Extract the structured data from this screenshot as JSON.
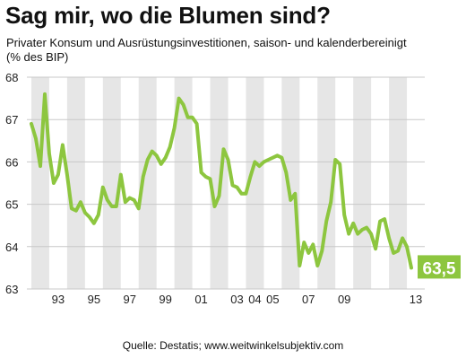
{
  "title": "Sag mir, wo die Blumen sind?",
  "subtitle_line1": "Privater Konsum und Ausrüstungsinvestitionen, saison- und kalenderbereinigt",
  "subtitle_line2": "(% des BIP)",
  "source": "Quelle: Destatis; www.weitwinkelsubjektiv.com",
  "colors": {
    "line": "#8dc63f",
    "band": "#e6e6e6",
    "label_bg": "#8dc63f",
    "label_text": "#ffffff"
  },
  "chart_data": {
    "type": "line",
    "ylim": [
      63,
      68
    ],
    "y_ticks": [
      "63",
      "64",
      "65",
      "66",
      "67",
      "68"
    ],
    "xlim": [
      1991.75,
      2014.0
    ],
    "x_ticks": [
      {
        "label": "93",
        "year": 1993.5
      },
      {
        "label": "95",
        "year": 1995.5
      },
      {
        "label": "97",
        "year": 1997.5
      },
      {
        "label": "99",
        "year": 1999.5
      },
      {
        "label": "01",
        "year": 2001.5
      },
      {
        "label": "03",
        "year": 2003.5
      },
      {
        "label": "04",
        "year": 2004.5
      },
      {
        "label": "05",
        "year": 2005.5
      },
      {
        "label": "07",
        "year": 2007.5
      },
      {
        "label": "09",
        "year": 2009.5
      },
      {
        "label": "13",
        "year": 2013.5
      }
    ],
    "shaded_years": [
      1992,
      1994,
      1996,
      1998,
      2000,
      2002,
      2004,
      2006,
      2008,
      2010,
      2012
    ],
    "end_label": "63,5",
    "grid": true,
    "values": [
      [
        1992.0,
        66.9
      ],
      [
        1992.25,
        66.55
      ],
      [
        1992.5,
        65.9
      ],
      [
        1992.75,
        67.6
      ],
      [
        1993.0,
        66.2
      ],
      [
        1993.25,
        65.5
      ],
      [
        1993.5,
        65.7
      ],
      [
        1993.75,
        66.4
      ],
      [
        1994.0,
        65.7
      ],
      [
        1994.25,
        64.9
      ],
      [
        1994.5,
        64.85
      ],
      [
        1994.75,
        65.05
      ],
      [
        1995.0,
        64.8
      ],
      [
        1995.25,
        64.7
      ],
      [
        1995.5,
        64.55
      ],
      [
        1995.75,
        64.75
      ],
      [
        1996.0,
        65.4
      ],
      [
        1996.25,
        65.1
      ],
      [
        1996.5,
        64.95
      ],
      [
        1996.75,
        64.95
      ],
      [
        1997.0,
        65.7
      ],
      [
        1997.25,
        65.05
      ],
      [
        1997.5,
        65.15
      ],
      [
        1997.75,
        65.1
      ],
      [
        1998.0,
        64.9
      ],
      [
        1998.25,
        65.65
      ],
      [
        1998.5,
        66.05
      ],
      [
        1998.75,
        66.25
      ],
      [
        1999.0,
        66.15
      ],
      [
        1999.25,
        65.95
      ],
      [
        1999.5,
        66.1
      ],
      [
        1999.75,
        66.35
      ],
      [
        2000.0,
        66.8
      ],
      [
        2000.25,
        67.5
      ],
      [
        2000.5,
        67.35
      ],
      [
        2000.75,
        67.05
      ],
      [
        2001.0,
        67.05
      ],
      [
        2001.25,
        66.9
      ],
      [
        2001.5,
        65.75
      ],
      [
        2001.75,
        65.65
      ],
      [
        2002.0,
        65.6
      ],
      [
        2002.25,
        64.95
      ],
      [
        2002.5,
        65.2
      ],
      [
        2002.75,
        66.3
      ],
      [
        2003.0,
        66.05
      ],
      [
        2003.25,
        65.45
      ],
      [
        2003.5,
        65.4
      ],
      [
        2003.75,
        65.25
      ],
      [
        2004.0,
        65.25
      ],
      [
        2004.25,
        65.65
      ],
      [
        2004.5,
        66.0
      ],
      [
        2004.75,
        65.9
      ],
      [
        2005.0,
        66.0
      ],
      [
        2005.25,
        66.05
      ],
      [
        2005.5,
        66.1
      ],
      [
        2005.75,
        66.15
      ],
      [
        2006.0,
        66.1
      ],
      [
        2006.25,
        65.75
      ],
      [
        2006.5,
        65.1
      ],
      [
        2006.75,
        65.25
      ],
      [
        2007.0,
        63.55
      ],
      [
        2007.25,
        64.1
      ],
      [
        2007.5,
        63.85
      ],
      [
        2007.75,
        64.05
      ],
      [
        2008.0,
        63.55
      ],
      [
        2008.25,
        63.9
      ],
      [
        2008.5,
        64.6
      ],
      [
        2008.75,
        65.05
      ],
      [
        2009.0,
        66.05
      ],
      [
        2009.25,
        65.95
      ],
      [
        2009.5,
        64.75
      ],
      [
        2009.75,
        64.3
      ],
      [
        2010.0,
        64.55
      ],
      [
        2010.25,
        64.3
      ],
      [
        2010.5,
        64.4
      ],
      [
        2010.75,
        64.45
      ],
      [
        2011.0,
        64.3
      ],
      [
        2011.25,
        63.95
      ],
      [
        2011.5,
        64.6
      ],
      [
        2011.75,
        64.65
      ],
      [
        2012.0,
        64.2
      ],
      [
        2012.25,
        63.85
      ],
      [
        2012.5,
        63.9
      ],
      [
        2012.75,
        64.2
      ],
      [
        2013.0,
        64.0
      ],
      [
        2013.25,
        63.5
      ]
    ]
  }
}
